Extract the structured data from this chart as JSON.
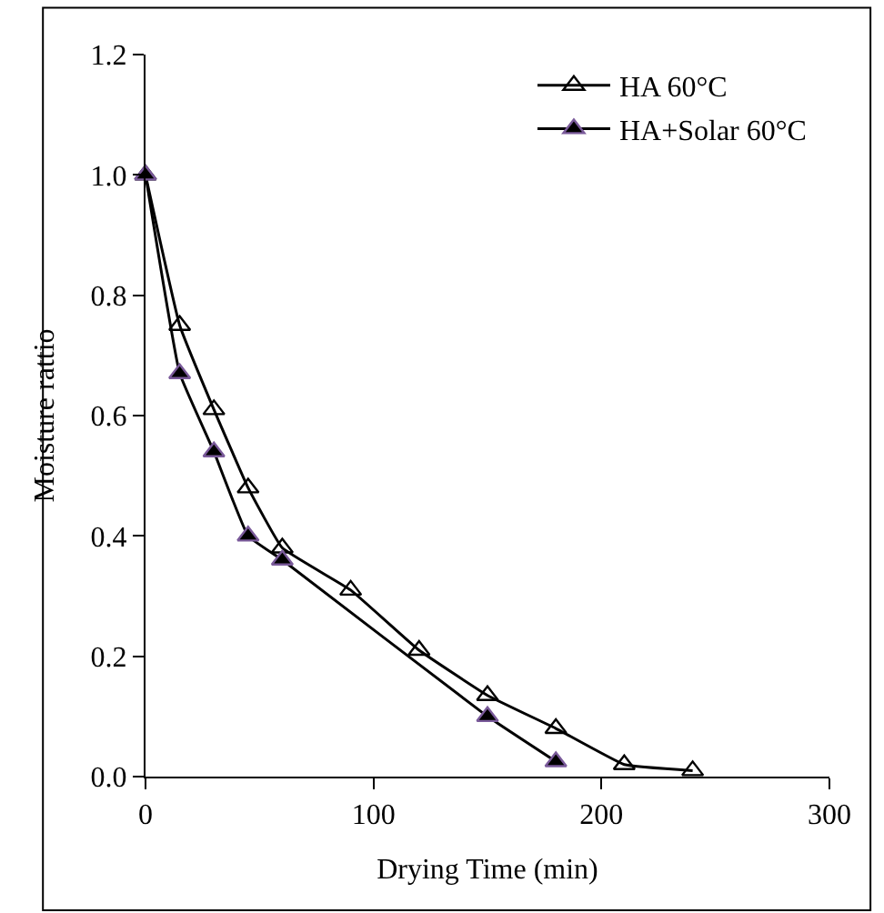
{
  "chart_data": {
    "type": "line",
    "xlabel": "Drying Time (min)",
    "ylabel": "Moisture rattio",
    "xlim": [
      0,
      300
    ],
    "xticks": [
      0,
      100,
      200,
      300
    ],
    "ylim": [
      0,
      1.2
    ],
    "yticks": [
      {
        "value": 0,
        "label": "0.0"
      },
      {
        "value": 0.2,
        "label": "0.2"
      },
      {
        "value": 0.4,
        "label": "0.4"
      },
      {
        "value": 0.6,
        "label": "0.6"
      },
      {
        "value": 0.8,
        "label": "0.8"
      },
      {
        "value": 1.0,
        "label": "1.0"
      },
      {
        "value": 1.2,
        "label": "1.2"
      }
    ],
    "grid": false,
    "legend": "top right",
    "marker": "triangle",
    "line_style": "solid",
    "series": [
      {
        "name": "HA 60°C",
        "color": "#000000",
        "marker": "triangle-open",
        "x": [
          0,
          15,
          30,
          45,
          60,
          90,
          120,
          150,
          180,
          210,
          240
        ],
        "values": [
          1.0,
          0.75,
          0.61,
          0.48,
          0.38,
          0.31,
          0.21,
          0.135,
          0.08,
          0.02,
          0.01
        ]
      },
      {
        "name": "HA+Solar 60°C",
        "color": "#000000",
        "x": [
          0,
          15,
          30,
          45,
          60,
          150,
          180
        ],
        "values": [
          1.0,
          0.67,
          0.54,
          0.4,
          0.36,
          0.1,
          0.025
        ]
      }
    ]
  }
}
